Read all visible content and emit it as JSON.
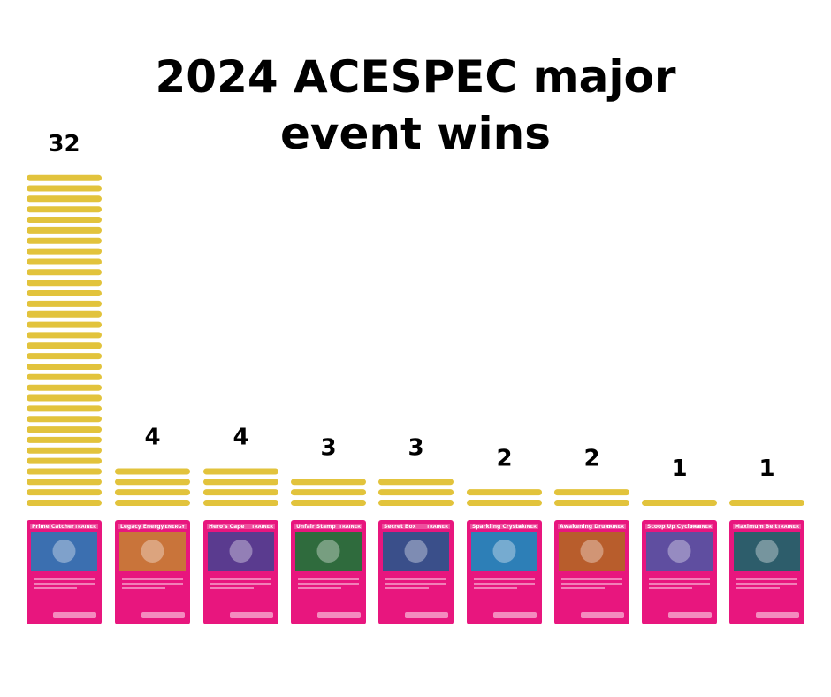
{
  "chart_data": {
    "type": "bar",
    "title": "2024 ACESPEC major event wins",
    "categories": [
      "Prime Catcher",
      "Legacy Energy",
      "Hero's Cape",
      "Unfair Stamp",
      "Secret Box",
      "Sparkling Crystal",
      "Awakening Drum",
      "Scoop Up Cyclone",
      "Maximum Belt"
    ],
    "card_types": [
      "TRAINER",
      "ENERGY",
      "TRAINER",
      "TRAINER",
      "TRAINER",
      "TRAINER",
      "TRAINER",
      "TRAINER",
      "TRAINER"
    ],
    "values": [
      32,
      4,
      4,
      3,
      3,
      2,
      2,
      1,
      1
    ],
    "data_labels": [
      "32",
      "4",
      "4",
      "3",
      "3",
      "2",
      "2",
      "1",
      "1"
    ],
    "ylim": [
      0,
      32
    ],
    "grid": false,
    "legend": "none"
  },
  "colors": {
    "bar": "#E2C33C",
    "card_frame": "#E8167E",
    "card_art": [
      "#3b6fb0",
      "#c9743a",
      "#5a3b8f",
      "#2f6b3d",
      "#3a4f8a",
      "#2d7fb7",
      "#b85d2c",
      "#5f4ea0",
      "#2d5d6b"
    ]
  }
}
